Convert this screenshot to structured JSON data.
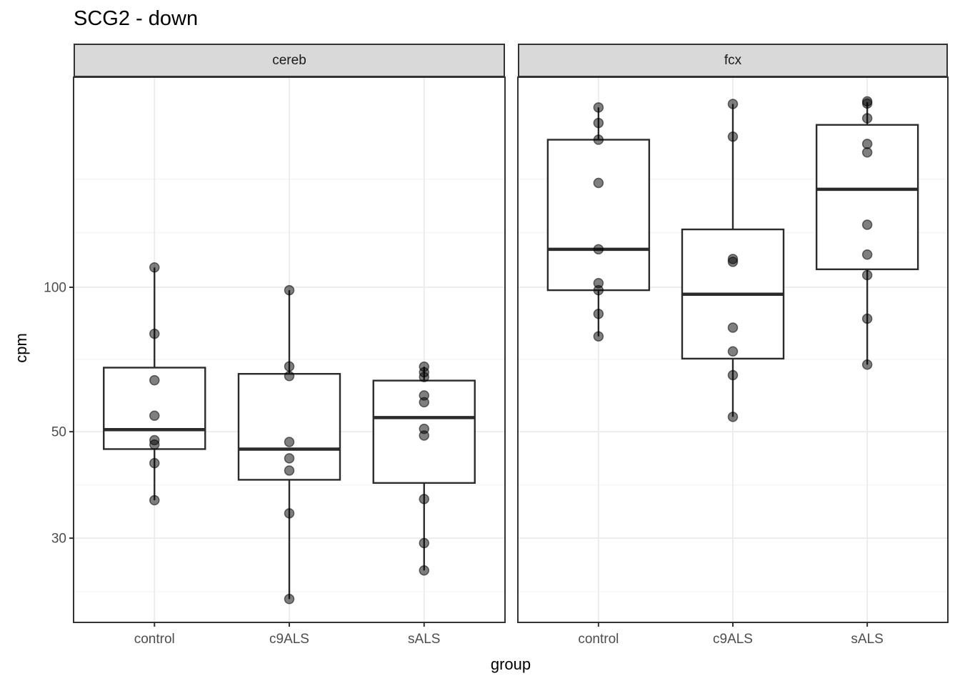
{
  "header": {
    "title": "SCG2 - down"
  },
  "axes": {
    "x_label": "group",
    "y_label": "cpm",
    "y_tick_labels": [
      "100",
      "50",
      "30"
    ]
  },
  "chart_data": {
    "type": "boxplot",
    "title": "SCG2 - down",
    "xlabel": "group",
    "ylabel": "cpm",
    "y_scale": "log10",
    "y_ticks": [
      100,
      50,
      30
    ],
    "y_minor_gridlines": [
      168,
      130,
      70.7,
      38.7,
      23.2
    ],
    "y_domain": [
      20,
      274
    ],
    "grid": true,
    "legend": "none",
    "categories": [
      "control",
      "c9ALS",
      "sALS"
    ],
    "facets": [
      {
        "label": "cereb",
        "groups": [
          {
            "category": "control",
            "box": {
              "whisker_low": 36,
              "q1": 46,
              "median": 50.5,
              "q3": 68,
              "whisker_high": 110
            },
            "points": [
              110,
              80,
              64,
              54,
              48,
              47,
              43,
              36
            ]
          },
          {
            "category": "c9ALS",
            "box": {
              "whisker_low": 22.4,
              "q1": 39.7,
              "median": 46,
              "q3": 66,
              "whisker_high": 98.6
            },
            "points": [
              98.6,
              68.4,
              65.3,
              47.6,
              44,
              41.5,
              33.8,
              22.4
            ]
          },
          {
            "category": "sALS",
            "box": {
              "whisker_low": 25.7,
              "q1": 39.1,
              "median": 53.5,
              "q3": 63.9,
              "whisker_high": 68.3
            },
            "points": [
              68.3,
              66.5,
              65,
              59.5,
              57.6,
              50.7,
              49.1,
              36.2,
              29.3,
              25.7
            ]
          }
        ]
      },
      {
        "label": "fcx",
        "groups": [
          {
            "category": "control",
            "box": {
              "whisker_low": 79,
              "q1": 98.6,
              "median": 120,
              "q3": 203,
              "whisker_high": 237
            },
            "points": [
              237,
              220,
              203,
              165,
              120,
              102,
              98.6,
              88,
              79
            ]
          },
          {
            "category": "c9ALS",
            "box": {
              "whisker_low": 53.7,
              "q1": 71,
              "median": 96.7,
              "q3": 132,
              "whisker_high": 241
            },
            "points": [
              241,
              206,
              114.5,
              113,
              82.4,
              73.5,
              65.6,
              53.7
            ]
          },
          {
            "category": "sALS",
            "box": {
              "whisker_low": 69,
              "q1": 109,
              "median": 160,
              "q3": 218,
              "whisker_high": 243
            },
            "points": [
              244,
              241.5,
              225,
              199,
              191,
              135,
              117,
              106,
              86,
              69
            ]
          }
        ]
      }
    ],
    "colors": {
      "panel_bg": "#ffffff",
      "panel_border": "#333333",
      "strip_bg": "#d9d9d9",
      "box_stroke": "#2b2b2b",
      "grid_major": "#ebebeb",
      "grid_minor": "#f5f5f5",
      "tick_mark": "#333333",
      "tick_label": "#4d4d4d",
      "point_fill": "#000000",
      "point_opacity": 0.5
    }
  }
}
